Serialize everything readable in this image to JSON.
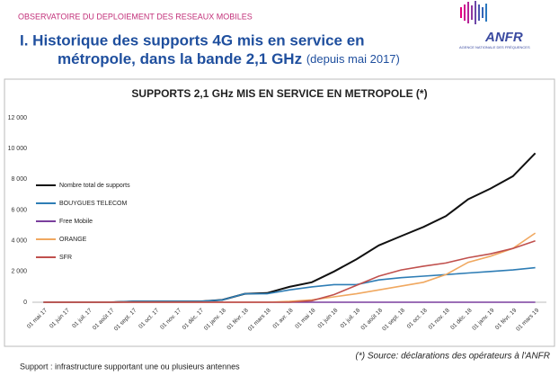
{
  "header": {
    "observatory": "OBSERVATOIRE DU DEPLOIEMENT DES RESEAUX MOBILES",
    "title_line1": "I. Historique des supports 4G mis en service en",
    "title_line2": "métropole, dans la bande 2,1 GHz",
    "title_note": "(depuis mai 2017)",
    "logo_text": "ANFR",
    "logo_subtext": "AGENCE NATIONALE DES FRÉQUENCES"
  },
  "chart_data": {
    "type": "line",
    "title": "SUPPORTS 2,1 GHz MIS EN SERVICE EN METROPOLE (*)",
    "categories": [
      "01 mai 17",
      "01 juin 17",
      "01 juil. 17",
      "01 août 17",
      "01 sept. 17",
      "01 oct. 17",
      "01 nov. 17",
      "01 déc. 17",
      "01 janv. 18",
      "01 févr. 18",
      "01 mars 18",
      "01 avr. 18",
      "01 mai 18",
      "01 juin 18",
      "01 juil. 18",
      "01 août 18",
      "01 sept. 18",
      "01 oct. 18",
      "01 nov. 18",
      "01 déc. 18",
      "01 janv. 19",
      "01 févr. 19",
      "01 mars 19"
    ],
    "series": [
      {
        "name": "Nombre total de supports",
        "color": "#111111",
        "values": [
          0,
          0,
          0,
          0,
          50,
          50,
          50,
          50,
          150,
          550,
          600,
          1000,
          1300,
          2000,
          2800,
          3700,
          4300,
          4900,
          5600,
          6700,
          7400,
          8200,
          9700
        ]
      },
      {
        "name": "BOUYGUES TELECOM",
        "color": "#2e7db5",
        "values": [
          0,
          0,
          0,
          0,
          50,
          50,
          50,
          50,
          150,
          550,
          550,
          800,
          1000,
          1150,
          1150,
          1450,
          1600,
          1700,
          1800,
          1900,
          2000,
          2100,
          2250
        ]
      },
      {
        "name": "Free Mobile",
        "color": "#7a3f9d",
        "values": [
          0,
          0,
          0,
          0,
          0,
          0,
          0,
          0,
          0,
          0,
          0,
          0,
          0,
          0,
          0,
          0,
          0,
          0,
          0,
          0,
          0,
          0,
          0
        ]
      },
      {
        "name": "ORANGE",
        "color": "#f0a860",
        "values": [
          0,
          0,
          0,
          0,
          0,
          0,
          0,
          0,
          0,
          0,
          0,
          50,
          150,
          350,
          550,
          800,
          1050,
          1300,
          1800,
          2600,
          3000,
          3500,
          4500
        ]
      },
      {
        "name": "SFR",
        "color": "#c0504d",
        "values": [
          0,
          0,
          0,
          0,
          0,
          0,
          0,
          0,
          0,
          0,
          0,
          0,
          100,
          500,
          1100,
          1700,
          2100,
          2350,
          2550,
          2900,
          3150,
          3500,
          4000
        ]
      }
    ],
    "ylim": [
      0,
      12000
    ],
    "yticks": [
      0,
      {
        "value": 2000,
        "label": "2 000"
      },
      {
        "value": 4000,
        "label": "4 000"
      },
      {
        "value": 6000,
        "label": "6 000"
      },
      {
        "value": 8000,
        "label": "8 000"
      },
      {
        "value": 10000,
        "label": "10 000"
      },
      {
        "value": 12000,
        "label": "12 000"
      }
    ],
    "grid": false,
    "source": "(*) Source: déclarations des opérateurs à l'ANFR"
  },
  "footnote": "Support : infrastructure supportant une ou plusieurs antennes"
}
